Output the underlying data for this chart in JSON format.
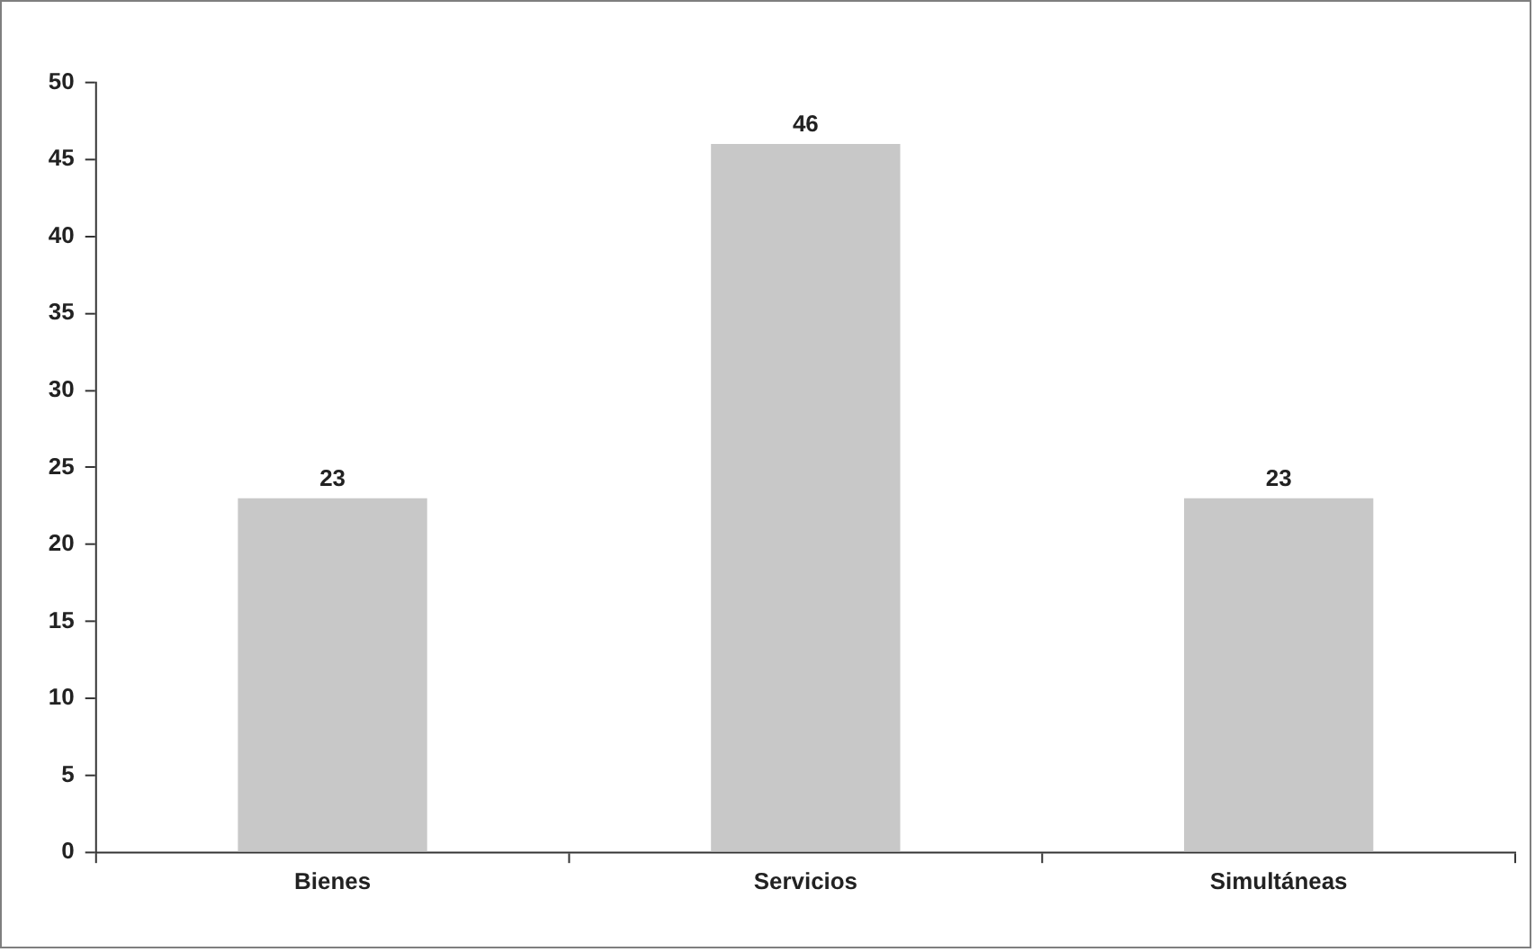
{
  "chart_data": {
    "type": "bar",
    "categories": [
      "Bienes",
      "Servicios",
      "Simultáneas"
    ],
    "values": [
      23,
      46,
      23
    ],
    "color": "#c8c8c8",
    "ylim": [
      0,
      50
    ],
    "yticks": [
      0,
      5,
      10,
      15,
      20,
      25,
      30,
      35,
      40,
      45,
      50
    ],
    "grid": false,
    "legend": false,
    "data_labels": true
  }
}
